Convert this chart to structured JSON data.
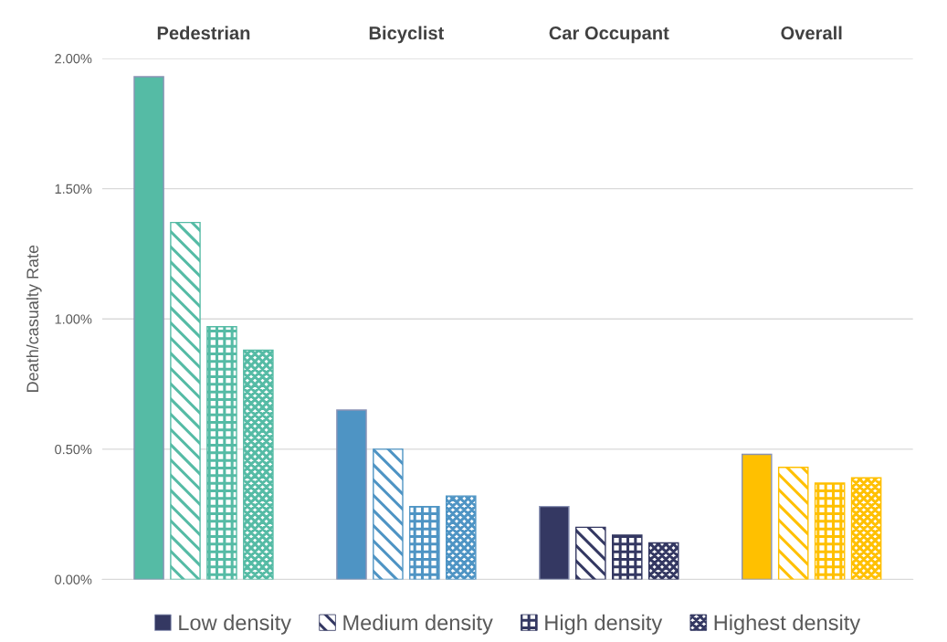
{
  "chart_data": {
    "type": "bar",
    "ylabel": "Death/casualty Rate",
    "categories": [
      "Pedestrian",
      "Bicyclist",
      "Car Occupant",
      "Overall"
    ],
    "series": [
      {
        "name": "Low density",
        "color": "#343862",
        "colors": [
          "#55bba5",
          "#4e94c4",
          "#343862",
          "#ffc000"
        ],
        "values": [
          1.93,
          0.65,
          0.28,
          0.48
        ]
      },
      {
        "name": "Medium density",
        "color": "#343862",
        "colors": [
          "#55bba5",
          "#4e94c4",
          "#343862",
          "#ffc000"
        ],
        "values": [
          1.37,
          0.5,
          0.2,
          0.43
        ]
      },
      {
        "name": "High density",
        "color": "#343862",
        "colors": [
          "#55bba5",
          "#4e94c4",
          "#343862",
          "#ffc000"
        ],
        "values": [
          0.97,
          0.28,
          0.17,
          0.37
        ]
      },
      {
        "name": "Highest density",
        "color": "#343862",
        "colors": [
          "#55bba5",
          "#4e94c4",
          "#343862",
          "#ffc000"
        ],
        "values": [
          0.88,
          0.32,
          0.14,
          0.39
        ]
      }
    ],
    "ylim": [
      0,
      2
    ],
    "yticks": [
      {
        "value": 0,
        "label": "0.00%"
      },
      {
        "value": 0.5,
        "label": "0.50%"
      },
      {
        "value": 1,
        "label": "1.00%"
      },
      {
        "value": 1.5,
        "label": "1.50%"
      },
      {
        "value": 2,
        "label": "2.00%"
      }
    ],
    "grid": "y",
    "legend": "bottom"
  }
}
